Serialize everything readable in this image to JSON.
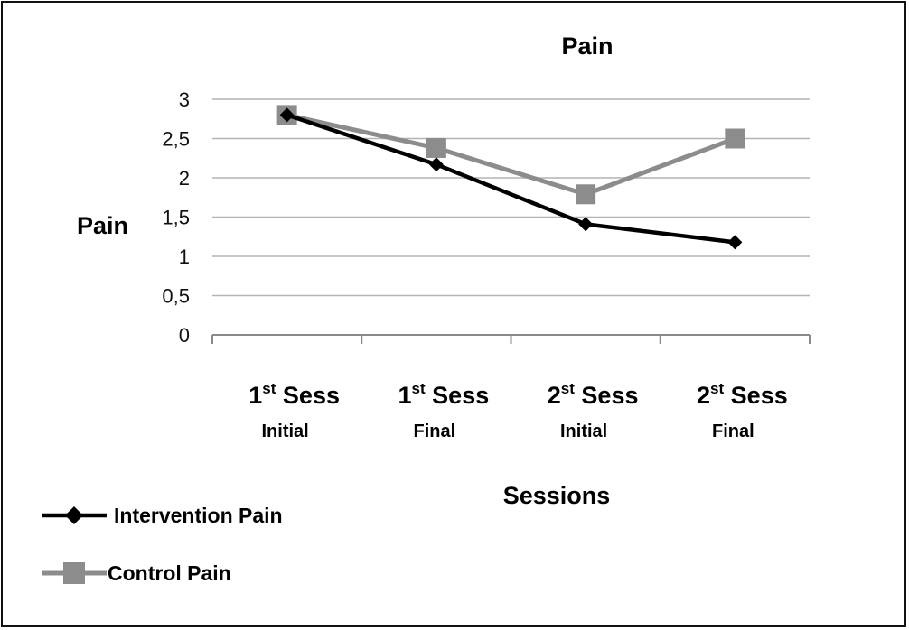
{
  "chart_data": {
    "type": "line",
    "title": "Pain",
    "xlabel": "Sessions",
    "ylabel": "Pain",
    "ylim": [
      0,
      3
    ],
    "yticks": [
      "0",
      "0,5",
      "1",
      "1,5",
      "2",
      "2,5",
      "3"
    ],
    "categories": [
      {
        "main": "1",
        "sup": "st",
        "rest": " Sess",
        "sub": "Initial"
      },
      {
        "main": "1",
        "sup": "st",
        "rest": " Sess",
        "sub": "Final"
      },
      {
        "main": "2",
        "sup": "st",
        "rest": " Sess",
        "sub": "Initial"
      },
      {
        "main": "2",
        "sup": "st",
        "rest": " Sess",
        "sub": "Final"
      }
    ],
    "series": [
      {
        "name": "Intervention Pain",
        "values": [
          2.8,
          2.17,
          1.41,
          1.18
        ],
        "color": "#000000",
        "marker": "diamond"
      },
      {
        "name": "Control Pain",
        "values": [
          2.8,
          2.38,
          1.79,
          2.5
        ],
        "color": "#8c8c8c",
        "marker": "square"
      }
    ],
    "grid": true,
    "legend_position": "bottom-left"
  }
}
